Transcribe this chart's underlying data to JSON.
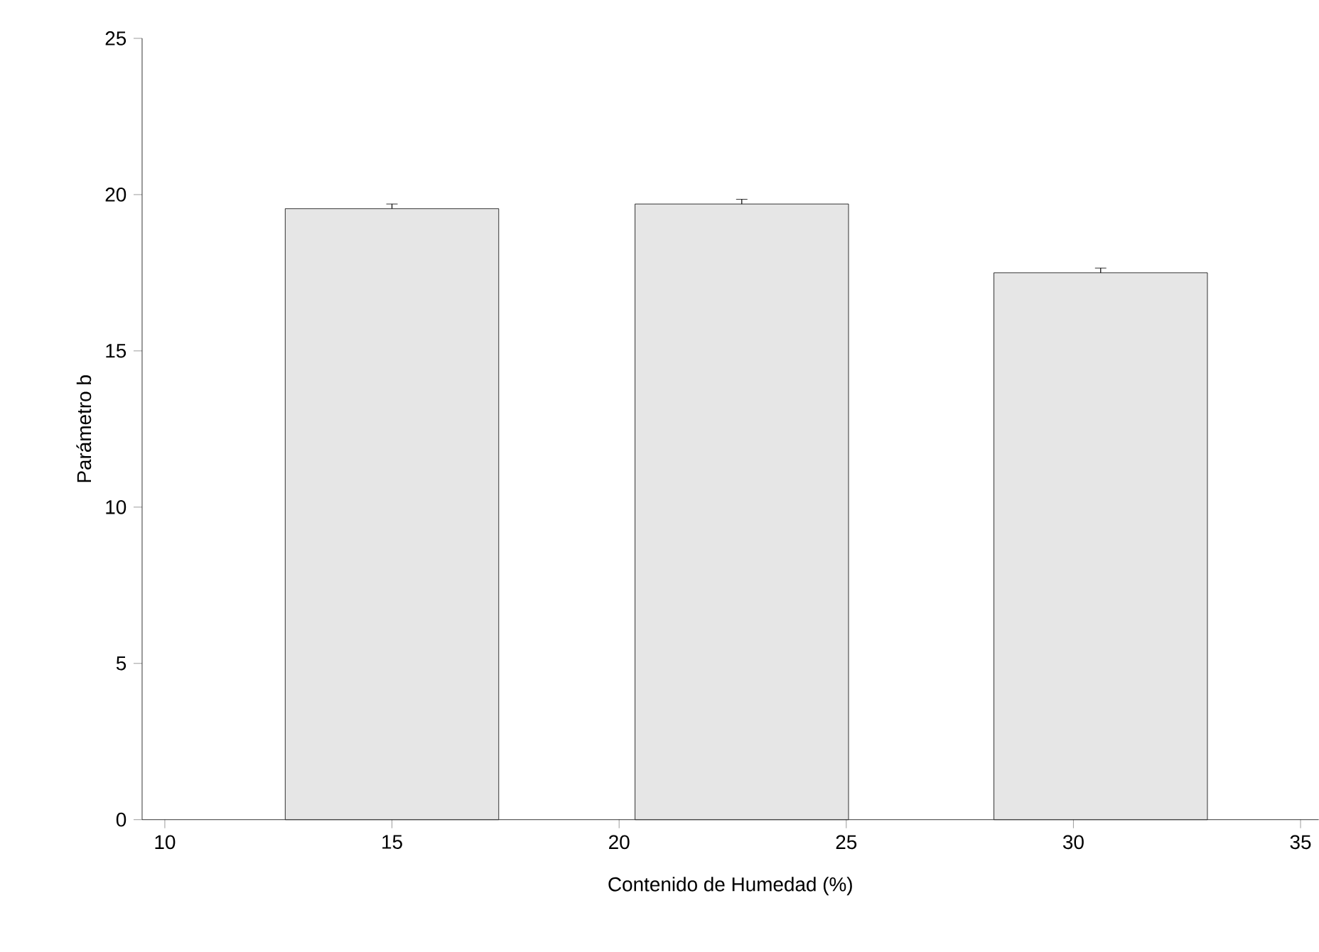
{
  "chart_data": {
    "type": "bar",
    "xlabel": "Contenido de Humedad (%)",
    "ylabel": "Parámetro b",
    "x": [
      15,
      22.7,
      30.6
    ],
    "values": [
      19.55,
      19.7,
      17.5
    ],
    "errors": [
      0.15,
      0.15,
      0.15
    ],
    "colors": [
      "#e6e6e6",
      "#e6e6e6",
      "#e6e6e6"
    ],
    "xlim": [
      9.5,
      35.4
    ],
    "ylim": [
      0,
      25
    ],
    "xticks": [
      10,
      15,
      20,
      25,
      30,
      35
    ],
    "yticks": [
      0,
      5,
      10,
      15,
      20,
      25
    ]
  }
}
